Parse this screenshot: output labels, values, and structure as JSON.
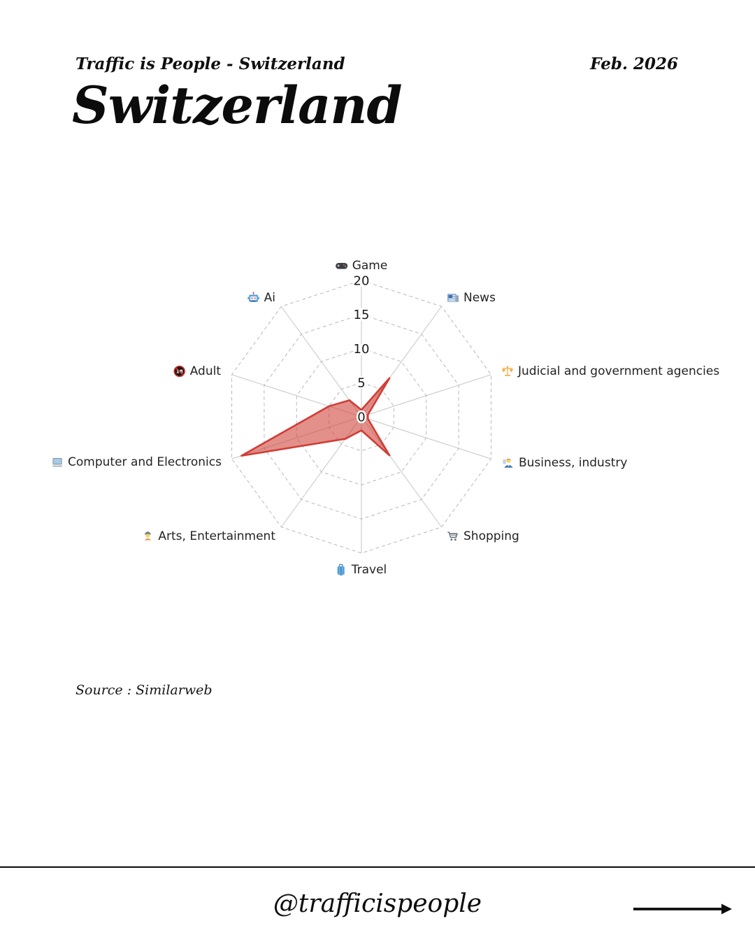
{
  "header": {
    "brand": "Traffic is People - Switzerland",
    "date": "Feb. 2026",
    "title": "Switzerland"
  },
  "source_note": "Source : Similarweb",
  "footer": {
    "handle": "@trafficispeople",
    "arrow_icon": "right-arrow-icon"
  },
  "chart_data": {
    "type": "radar",
    "title": "",
    "categories": [
      "Game",
      "News",
      "Judicial and government agencies",
      "Business, industry",
      "Shopping",
      "Travel",
      "Arts, Entertainment",
      "Computer and Electronics",
      "Adult",
      "Ai"
    ],
    "category_icons": [
      "gamepad-icon",
      "newspaper-icon",
      "scales-icon",
      "office-worker-icon",
      "shopping-cart-icon",
      "luggage-icon",
      "artist-icon",
      "laptop-icon",
      "under-18-icon",
      "robot-icon"
    ],
    "values": [
      1,
      7,
      1,
      1,
      7,
      2,
      4,
      18.5,
      5,
      3
    ],
    "ticks": [
      0,
      5,
      10,
      15,
      20
    ],
    "rmax": 20,
    "series_color": "#cf3e36",
    "fill_opacity": 0.58,
    "grid": {
      "rings": "dashed",
      "spokes": "solid",
      "ring_color": "#b8b8b8",
      "spoke_color": "#c6c6c6",
      "legend": "none"
    }
  }
}
